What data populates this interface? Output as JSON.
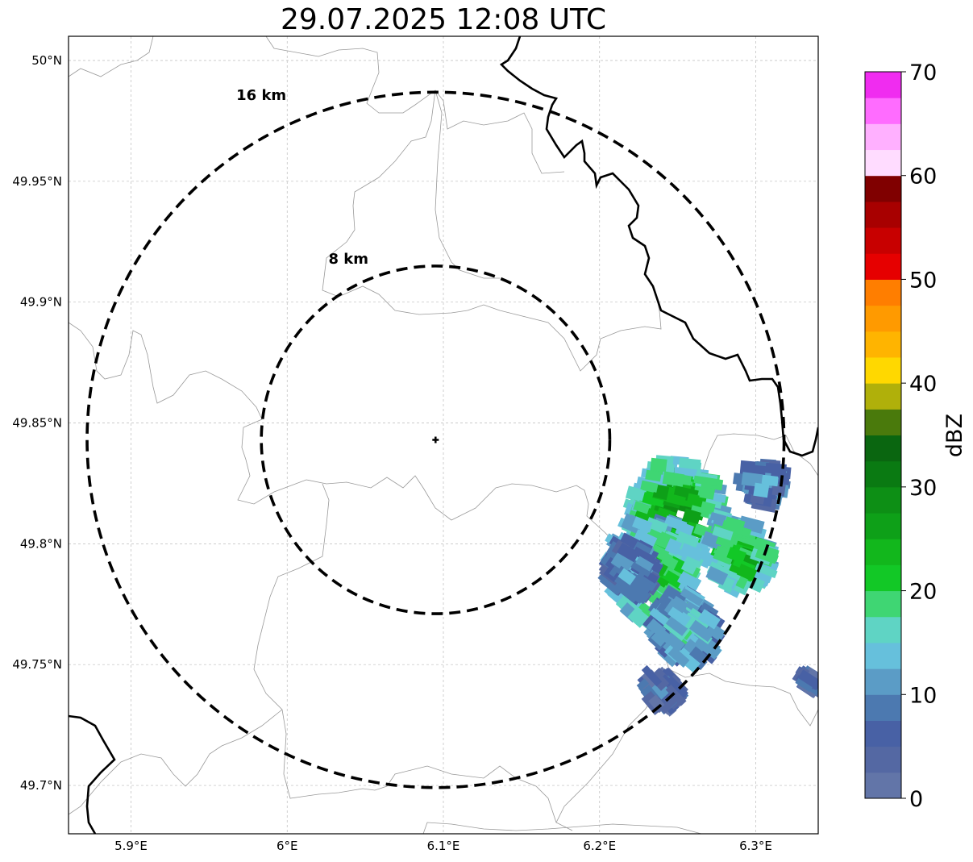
{
  "title": "29.07.2025 12:08 UTC",
  "map": {
    "lon_range": [
      5.86,
      6.34
    ],
    "lat_range": [
      49.68,
      50.01
    ],
    "lon_ticks": [
      {
        "value": 5.9,
        "label": "5.9°E"
      },
      {
        "value": 6.0,
        "label": "6°E"
      },
      {
        "value": 6.1,
        "label": "6.1°E"
      },
      {
        "value": 6.2,
        "label": "6.2°E"
      },
      {
        "value": 6.3,
        "label": "6.3°E"
      }
    ],
    "lat_ticks": [
      {
        "value": 50.0,
        "label": "50°N"
      },
      {
        "value": 49.95,
        "label": "49.95°N"
      },
      {
        "value": 49.9,
        "label": "49.9°N"
      },
      {
        "value": 49.85,
        "label": "49.85°N"
      },
      {
        "value": 49.8,
        "label": "49.8°N"
      },
      {
        "value": 49.75,
        "label": "49.75°N"
      },
      {
        "value": 49.7,
        "label": "49.7°N"
      }
    ],
    "radar_center": {
      "lon": 6.095,
      "lat": 49.843
    },
    "range_rings": [
      {
        "radius_km": 8,
        "label": "8 km"
      },
      {
        "radius_km": 16,
        "label": "16 km"
      }
    ],
    "gridlines": true
  },
  "colorbar": {
    "label": "dBZ",
    "min": 0,
    "max": 70,
    "step": 2.5,
    "ticks": [
      {
        "value": 0,
        "label": "0"
      },
      {
        "value": 10,
        "label": "10"
      },
      {
        "value": 20,
        "label": "20"
      },
      {
        "value": 30,
        "label": "30"
      },
      {
        "value": 40,
        "label": "40"
      },
      {
        "value": 50,
        "label": "50"
      },
      {
        "value": 60,
        "label": "60"
      },
      {
        "value": 70,
        "label": "70"
      }
    ],
    "colors": [
      "#6275a8",
      "#5468a3",
      "#4861a5",
      "#4c79b0",
      "#5b9cc6",
      "#66c0dc",
      "#5fd4c4",
      "#3fd673",
      "#12c826",
      "#12b71c",
      "#0ea018",
      "#0d8f15",
      "#0a7a12",
      "#0a6610",
      "#4a7a0c",
      "#b0b00a",
      "#ffd800",
      "#ffb400",
      "#ff9a00",
      "#ff7e00",
      "#e60000",
      "#c80000",
      "#a80000",
      "#800000",
      "#ffdcff",
      "#ffb0ff",
      "#ff6cff",
      "#f02cf0"
    ]
  },
  "echoes": [
    {
      "lon": 6.25,
      "lat": 49.815,
      "dbz": 27,
      "spread": 0.028
    },
    {
      "lon": 6.235,
      "lat": 49.79,
      "dbz": 22,
      "spread": 0.03
    },
    {
      "lon": 6.29,
      "lat": 49.795,
      "dbz": 25,
      "spread": 0.02
    },
    {
      "lon": 6.255,
      "lat": 49.765,
      "dbz": 16,
      "spread": 0.02
    },
    {
      "lon": 6.22,
      "lat": 49.79,
      "dbz": 12,
      "spread": 0.015
    },
    {
      "lon": 6.305,
      "lat": 49.825,
      "dbz": 12,
      "spread": 0.012
    },
    {
      "lon": 6.24,
      "lat": 49.74,
      "dbz": 8,
      "spread": 0.01
    },
    {
      "lon": 6.335,
      "lat": 49.743,
      "dbz": 7,
      "spread": 0.004
    }
  ]
}
